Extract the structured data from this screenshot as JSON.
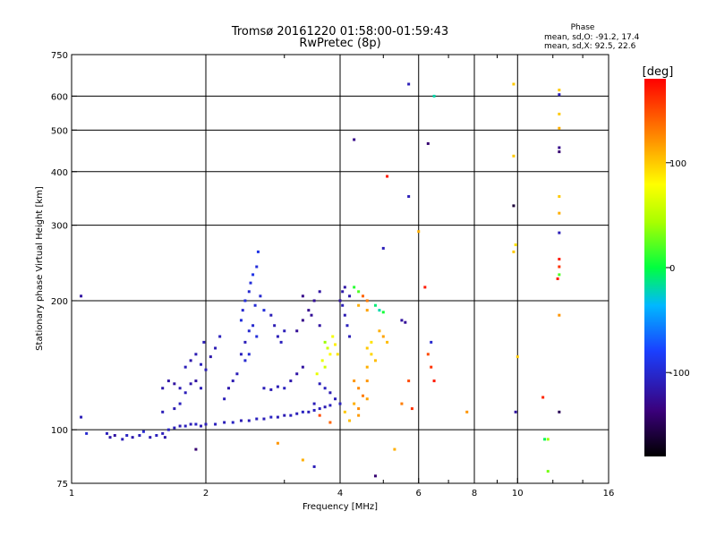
{
  "chart_data": {
    "type": "scatter",
    "title": "Tromsø 20161220 01:58:00-01:59:43",
    "subtitle": "RwPretec (8p)",
    "xlabel": "Frequency [MHz]",
    "ylabel": "Stationary phase Virtual Height [km]",
    "x_scale": "log",
    "y_scale": "log",
    "xlim": [
      1,
      16
    ],
    "ylim": [
      75,
      750
    ],
    "x_ticks": [
      1,
      2,
      4,
      6,
      8,
      10,
      16
    ],
    "x_tick_labels": [
      "1",
      "2",
      "4",
      "6",
      "8",
      "10",
      "16"
    ],
    "x_minor_ticks": [
      3,
      5,
      7,
      9,
      12,
      14
    ],
    "y_ticks": [
      75,
      100,
      200,
      300,
      400,
      500,
      600,
      750
    ],
    "y_tick_labels": [
      "75",
      "100",
      "200",
      "300",
      "400",
      "500",
      "600",
      "750"
    ],
    "grid": true,
    "stats": {
      "heading": "Phase",
      "line_o": "mean, sd,O: -91.2, 17.4",
      "line_x": "mean, sd,X:  92.5, 22.6"
    },
    "colorbar": {
      "label": "[deg]",
      "range": [
        -180,
        180
      ],
      "ticks": [
        100,
        0,
        -100
      ],
      "tick_labels": [
        "100",
        "0",
        "-100"
      ]
    },
    "points": [
      {
        "x": 1.05,
        "y": 205,
        "c": -120
      },
      {
        "x": 1.05,
        "y": 107,
        "c": -110
      },
      {
        "x": 1.08,
        "y": 98,
        "c": -100
      },
      {
        "x": 1.2,
        "y": 98,
        "c": -110
      },
      {
        "x": 1.22,
        "y": 96,
        "c": -115
      },
      {
        "x": 1.25,
        "y": 97,
        "c": -120
      },
      {
        "x": 1.3,
        "y": 95,
        "c": -110
      },
      {
        "x": 1.33,
        "y": 97,
        "c": -105
      },
      {
        "x": 1.37,
        "y": 96,
        "c": -115
      },
      {
        "x": 1.42,
        "y": 97,
        "c": -110
      },
      {
        "x": 1.45,
        "y": 99,
        "c": -100
      },
      {
        "x": 1.5,
        "y": 96,
        "c": -112
      },
      {
        "x": 1.55,
        "y": 97,
        "c": -108
      },
      {
        "x": 1.6,
        "y": 98,
        "c": -110
      },
      {
        "x": 1.62,
        "y": 96,
        "c": -115
      },
      {
        "x": 1.65,
        "y": 100,
        "c": -105
      },
      {
        "x": 1.7,
        "y": 101,
        "c": -110
      },
      {
        "x": 1.75,
        "y": 102,
        "c": -112
      },
      {
        "x": 1.8,
        "y": 102,
        "c": -108
      },
      {
        "x": 1.85,
        "y": 103,
        "c": -110
      },
      {
        "x": 1.9,
        "y": 103,
        "c": -105
      },
      {
        "x": 1.95,
        "y": 102,
        "c": -112
      },
      {
        "x": 2.0,
        "y": 103,
        "c": -110
      },
      {
        "x": 2.1,
        "y": 103,
        "c": -108
      },
      {
        "x": 2.2,
        "y": 104,
        "c": -110
      },
      {
        "x": 2.3,
        "y": 104,
        "c": -105
      },
      {
        "x": 2.4,
        "y": 105,
        "c": -112
      },
      {
        "x": 2.5,
        "y": 105,
        "c": -110
      },
      {
        "x": 2.6,
        "y": 106,
        "c": -108
      },
      {
        "x": 2.7,
        "y": 106,
        "c": -110
      },
      {
        "x": 2.8,
        "y": 107,
        "c": -105
      },
      {
        "x": 2.9,
        "y": 107,
        "c": -110
      },
      {
        "x": 3.0,
        "y": 108,
        "c": -112
      },
      {
        "x": 3.1,
        "y": 108,
        "c": -108
      },
      {
        "x": 3.2,
        "y": 109,
        "c": -110
      },
      {
        "x": 3.3,
        "y": 110,
        "c": -105
      },
      {
        "x": 3.4,
        "y": 110,
        "c": -110
      },
      {
        "x": 3.5,
        "y": 111,
        "c": -108
      },
      {
        "x": 3.6,
        "y": 112,
        "c": -110
      },
      {
        "x": 3.7,
        "y": 113,
        "c": -112
      },
      {
        "x": 3.8,
        "y": 114,
        "c": -108
      },
      {
        "x": 1.6,
        "y": 125,
        "c": -115
      },
      {
        "x": 1.65,
        "y": 130,
        "c": -118
      },
      {
        "x": 1.7,
        "y": 128,
        "c": -120
      },
      {
        "x": 1.75,
        "y": 125,
        "c": -112
      },
      {
        "x": 1.8,
        "y": 122,
        "c": -110
      },
      {
        "x": 1.85,
        "y": 128,
        "c": -115
      },
      {
        "x": 1.9,
        "y": 130,
        "c": -120
      },
      {
        "x": 1.95,
        "y": 125,
        "c": -110
      },
      {
        "x": 1.8,
        "y": 140,
        "c": -110
      },
      {
        "x": 1.85,
        "y": 145,
        "c": -115
      },
      {
        "x": 1.9,
        "y": 150,
        "c": -112
      },
      {
        "x": 1.95,
        "y": 142,
        "c": -108
      },
      {
        "x": 2.0,
        "y": 138,
        "c": -110
      },
      {
        "x": 2.05,
        "y": 148,
        "c": -115
      },
      {
        "x": 2.1,
        "y": 155,
        "c": -112
      },
      {
        "x": 1.98,
        "y": 160,
        "c": -110
      },
      {
        "x": 2.15,
        "y": 165,
        "c": -108
      },
      {
        "x": 1.6,
        "y": 110,
        "c": -110
      },
      {
        "x": 1.7,
        "y": 112,
        "c": -112
      },
      {
        "x": 1.75,
        "y": 115,
        "c": -108
      },
      {
        "x": 2.2,
        "y": 118,
        "c": -110
      },
      {
        "x": 2.25,
        "y": 125,
        "c": -115
      },
      {
        "x": 2.3,
        "y": 130,
        "c": -112
      },
      {
        "x": 2.35,
        "y": 135,
        "c": -110
      },
      {
        "x": 2.4,
        "y": 150,
        "c": -108
      },
      {
        "x": 2.45,
        "y": 160,
        "c": -110
      },
      {
        "x": 2.5,
        "y": 170,
        "c": -100
      },
      {
        "x": 2.4,
        "y": 180,
        "c": -95
      },
      {
        "x": 2.42,
        "y": 190,
        "c": -100
      },
      {
        "x": 2.45,
        "y": 200,
        "c": -95
      },
      {
        "x": 2.5,
        "y": 210,
        "c": -100
      },
      {
        "x": 2.52,
        "y": 220,
        "c": -95
      },
      {
        "x": 2.55,
        "y": 230,
        "c": -90
      },
      {
        "x": 2.6,
        "y": 240,
        "c": -95
      },
      {
        "x": 2.62,
        "y": 260,
        "c": -90
      },
      {
        "x": 2.58,
        "y": 195,
        "c": -98
      },
      {
        "x": 2.65,
        "y": 205,
        "c": -100
      },
      {
        "x": 2.7,
        "y": 190,
        "c": -95
      },
      {
        "x": 2.55,
        "y": 175,
        "c": -100
      },
      {
        "x": 2.6,
        "y": 165,
        "c": -95
      },
      {
        "x": 2.5,
        "y": 150,
        "c": -98
      },
      {
        "x": 2.45,
        "y": 145,
        "c": -100
      },
      {
        "x": 2.8,
        "y": 185,
        "c": -110
      },
      {
        "x": 2.85,
        "y": 175,
        "c": -112
      },
      {
        "x": 2.9,
        "y": 165,
        "c": -110
      },
      {
        "x": 2.95,
        "y": 160,
        "c": -108
      },
      {
        "x": 3.0,
        "y": 170,
        "c": -110
      },
      {
        "x": 2.7,
        "y": 125,
        "c": -110
      },
      {
        "x": 2.8,
        "y": 124,
        "c": -112
      },
      {
        "x": 2.9,
        "y": 126,
        "c": -110
      },
      {
        "x": 3.0,
        "y": 125,
        "c": -108
      },
      {
        "x": 3.1,
        "y": 130,
        "c": -115
      },
      {
        "x": 3.2,
        "y": 135,
        "c": -118
      },
      {
        "x": 3.3,
        "y": 140,
        "c": -120
      },
      {
        "x": 3.2,
        "y": 170,
        "c": -125
      },
      {
        "x": 3.3,
        "y": 180,
        "c": -130
      },
      {
        "x": 3.4,
        "y": 190,
        "c": -128
      },
      {
        "x": 3.5,
        "y": 200,
        "c": -125
      },
      {
        "x": 3.6,
        "y": 210,
        "c": -120
      },
      {
        "x": 3.3,
        "y": 205,
        "c": -130
      },
      {
        "x": 3.45,
        "y": 185,
        "c": -125
      },
      {
        "x": 3.6,
        "y": 175,
        "c": -120
      },
      {
        "x": 3.7,
        "y": 160,
        "c": 40
      },
      {
        "x": 3.75,
        "y": 155,
        "c": 60
      },
      {
        "x": 3.8,
        "y": 150,
        "c": 80
      },
      {
        "x": 3.65,
        "y": 145,
        "c": 70
      },
      {
        "x": 3.7,
        "y": 140,
        "c": 60
      },
      {
        "x": 3.85,
        "y": 165,
        "c": 75
      },
      {
        "x": 3.9,
        "y": 158,
        "c": 85
      },
      {
        "x": 3.95,
        "y": 150,
        "c": 90
      },
      {
        "x": 3.55,
        "y": 135,
        "c": 70
      },
      {
        "x": 3.6,
        "y": 128,
        "c": -110
      },
      {
        "x": 3.7,
        "y": 125,
        "c": -108
      },
      {
        "x": 3.8,
        "y": 122,
        "c": -112
      },
      {
        "x": 3.9,
        "y": 118,
        "c": -110
      },
      {
        "x": 4.0,
        "y": 115,
        "c": -108
      },
      {
        "x": 4.0,
        "y": 200,
        "c": -120
      },
      {
        "x": 4.05,
        "y": 210,
        "c": -115
      },
      {
        "x": 4.1,
        "y": 215,
        "c": -118
      },
      {
        "x": 4.05,
        "y": 195,
        "c": -110
      },
      {
        "x": 4.1,
        "y": 185,
        "c": -112
      },
      {
        "x": 4.15,
        "y": 175,
        "c": -108
      },
      {
        "x": 4.2,
        "y": 165,
        "c": -110
      },
      {
        "x": 4.2,
        "y": 205,
        "c": -115
      },
      {
        "x": 4.3,
        "y": 215,
        "c": 10
      },
      {
        "x": 4.4,
        "y": 210,
        "c": 20
      },
      {
        "x": 4.5,
        "y": 205,
        "c": 140
      },
      {
        "x": 4.6,
        "y": 200,
        "c": 130
      },
      {
        "x": 4.4,
        "y": 195,
        "c": 110
      },
      {
        "x": 4.6,
        "y": 190,
        "c": 115
      },
      {
        "x": 4.8,
        "y": 195,
        "c": -10
      },
      {
        "x": 4.9,
        "y": 190,
        "c": -20
      },
      {
        "x": 5.0,
        "y": 188,
        "c": 5
      },
      {
        "x": 4.3,
        "y": 130,
        "c": 120
      },
      {
        "x": 4.4,
        "y": 125,
        "c": 125
      },
      {
        "x": 4.5,
        "y": 120,
        "c": 130
      },
      {
        "x": 4.6,
        "y": 118,
        "c": 115
      },
      {
        "x": 4.3,
        "y": 115,
        "c": 110
      },
      {
        "x": 4.4,
        "y": 112,
        "c": 125
      },
      {
        "x": 4.6,
        "y": 130,
        "c": 120
      },
      {
        "x": 4.6,
        "y": 140,
        "c": 110
      },
      {
        "x": 4.4,
        "y": 108,
        "c": 118
      },
      {
        "x": 4.1,
        "y": 110,
        "c": 100
      },
      {
        "x": 4.2,
        "y": 105,
        "c": 105
      },
      {
        "x": 4.6,
        "y": 155,
        "c": 100
      },
      {
        "x": 4.7,
        "y": 150,
        "c": 95
      },
      {
        "x": 4.8,
        "y": 145,
        "c": 105
      },
      {
        "x": 4.7,
        "y": 160,
        "c": 90
      },
      {
        "x": 4.9,
        "y": 170,
        "c": 110
      },
      {
        "x": 5.0,
        "y": 165,
        "c": 115
      },
      {
        "x": 5.1,
        "y": 160,
        "c": 105
      },
      {
        "x": 5.5,
        "y": 180,
        "c": -120
      },
      {
        "x": 5.6,
        "y": 178,
        "c": -125
      },
      {
        "x": 5.7,
        "y": 640,
        "c": -110
      },
      {
        "x": 4.3,
        "y": 475,
        "c": -130
      },
      {
        "x": 6.3,
        "y": 465,
        "c": -140
      },
      {
        "x": 5.7,
        "y": 350,
        "c": -110
      },
      {
        "x": 5.1,
        "y": 390,
        "c": 170
      },
      {
        "x": 5.0,
        "y": 265,
        "c": -110
      },
      {
        "x": 6.2,
        "y": 215,
        "c": 170
      },
      {
        "x": 6.0,
        "y": 290,
        "c": 110
      },
      {
        "x": 6.4,
        "y": 160,
        "c": -100
      },
      {
        "x": 6.3,
        "y": 150,
        "c": 150
      },
      {
        "x": 6.4,
        "y": 140,
        "c": 160
      },
      {
        "x": 6.5,
        "y": 130,
        "c": 170
      },
      {
        "x": 6.5,
        "y": 600,
        "c": -20
      },
      {
        "x": 5.7,
        "y": 130,
        "c": 150
      },
      {
        "x": 5.8,
        "y": 112,
        "c": 160
      },
      {
        "x": 5.5,
        "y": 115,
        "c": 130
      },
      {
        "x": 5.3,
        "y": 90,
        "c": 110
      },
      {
        "x": 4.8,
        "y": 78,
        "c": -140
      },
      {
        "x": 3.3,
        "y": 85,
        "c": 110
      },
      {
        "x": 2.9,
        "y": 93,
        "c": 120
      },
      {
        "x": 1.9,
        "y": 90,
        "c": -140
      },
      {
        "x": 3.5,
        "y": 82,
        "c": -110
      },
      {
        "x": 3.5,
        "y": 115,
        "c": -110
      },
      {
        "x": 3.6,
        "y": 108,
        "c": 150
      },
      {
        "x": 3.8,
        "y": 104,
        "c": 140
      },
      {
        "x": 7.7,
        "y": 110,
        "c": 120
      },
      {
        "x": 9.8,
        "y": 640,
        "c": 100
      },
      {
        "x": 9.8,
        "y": 435,
        "c": 100
      },
      {
        "x": 9.8,
        "y": 333,
        "c": -160
      },
      {
        "x": 9.9,
        "y": 270,
        "c": 90
      },
      {
        "x": 9.8,
        "y": 260,
        "c": 100
      },
      {
        "x": 10.0,
        "y": 148,
        "c": 100
      },
      {
        "x": 9.9,
        "y": 110,
        "c": -120
      },
      {
        "x": 11.4,
        "y": 119,
        "c": 165
      },
      {
        "x": 11.5,
        "y": 95,
        "c": -5
      },
      {
        "x": 11.7,
        "y": 95,
        "c": 40
      },
      {
        "x": 11.7,
        "y": 80,
        "c": 30
      },
      {
        "x": 12.4,
        "y": 620,
        "c": 100
      },
      {
        "x": 12.4,
        "y": 605,
        "c": -110
      },
      {
        "x": 12.4,
        "y": 545,
        "c": 100
      },
      {
        "x": 12.4,
        "y": 505,
        "c": 110
      },
      {
        "x": 12.4,
        "y": 455,
        "c": -130
      },
      {
        "x": 12.4,
        "y": 445,
        "c": -140
      },
      {
        "x": 12.4,
        "y": 350,
        "c": 100
      },
      {
        "x": 12.4,
        "y": 320,
        "c": 110
      },
      {
        "x": 12.4,
        "y": 288,
        "c": -110
      },
      {
        "x": 12.4,
        "y": 250,
        "c": 170
      },
      {
        "x": 12.4,
        "y": 240,
        "c": 160
      },
      {
        "x": 12.4,
        "y": 230,
        "c": 20
      },
      {
        "x": 12.3,
        "y": 225,
        "c": 170
      },
      {
        "x": 12.4,
        "y": 185,
        "c": 120
      },
      {
        "x": 12.4,
        "y": 110,
        "c": -150
      }
    ]
  }
}
